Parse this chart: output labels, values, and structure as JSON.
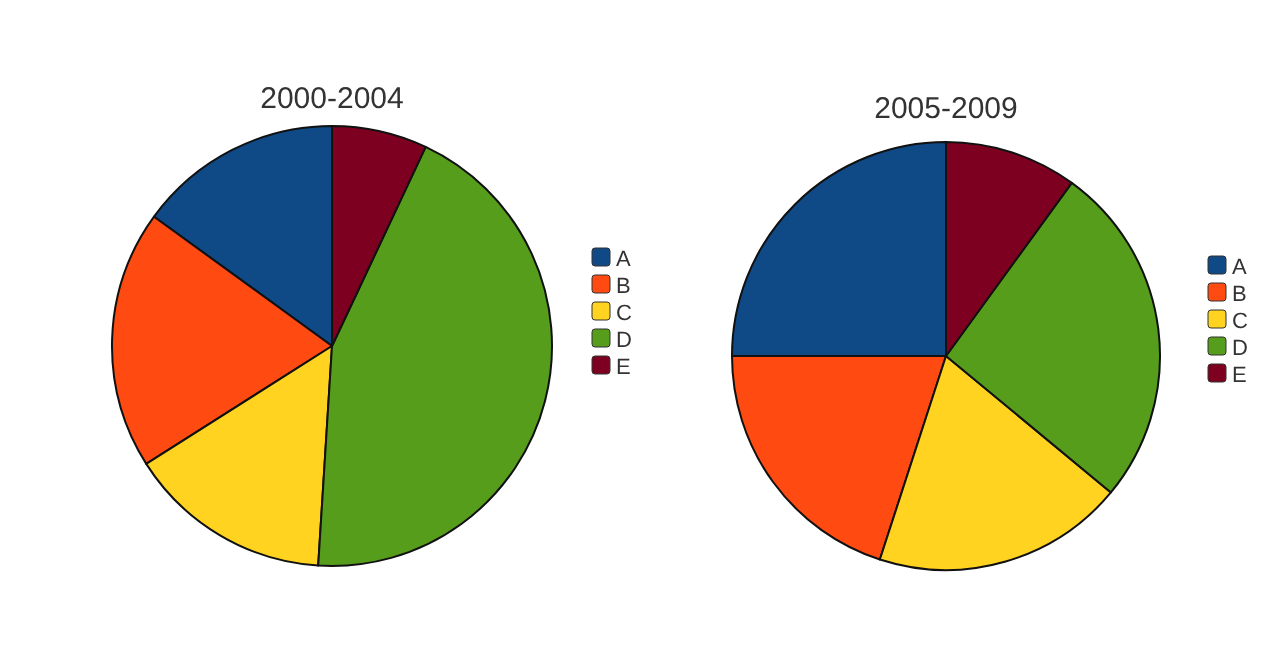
{
  "chart_data": [
    {
      "type": "pie",
      "title": "2000-2004",
      "categories": [
        "A",
        "B",
        "C",
        "D",
        "E"
      ],
      "values": [
        15,
        19,
        15,
        44,
        7
      ],
      "colors": [
        "#0f4a86",
        "#ff4a12",
        "#ffd320",
        "#579d1c",
        "#7e0021"
      ],
      "legend": "right"
    },
    {
      "type": "pie",
      "title": "2005-2009",
      "categories": [
        "A",
        "B",
        "C",
        "D",
        "E"
      ],
      "values": [
        25,
        20,
        19,
        26,
        10
      ],
      "colors": [
        "#0f4a86",
        "#ff4a12",
        "#ffd320",
        "#579d1c",
        "#7e0021"
      ],
      "legend": "right"
    }
  ]
}
